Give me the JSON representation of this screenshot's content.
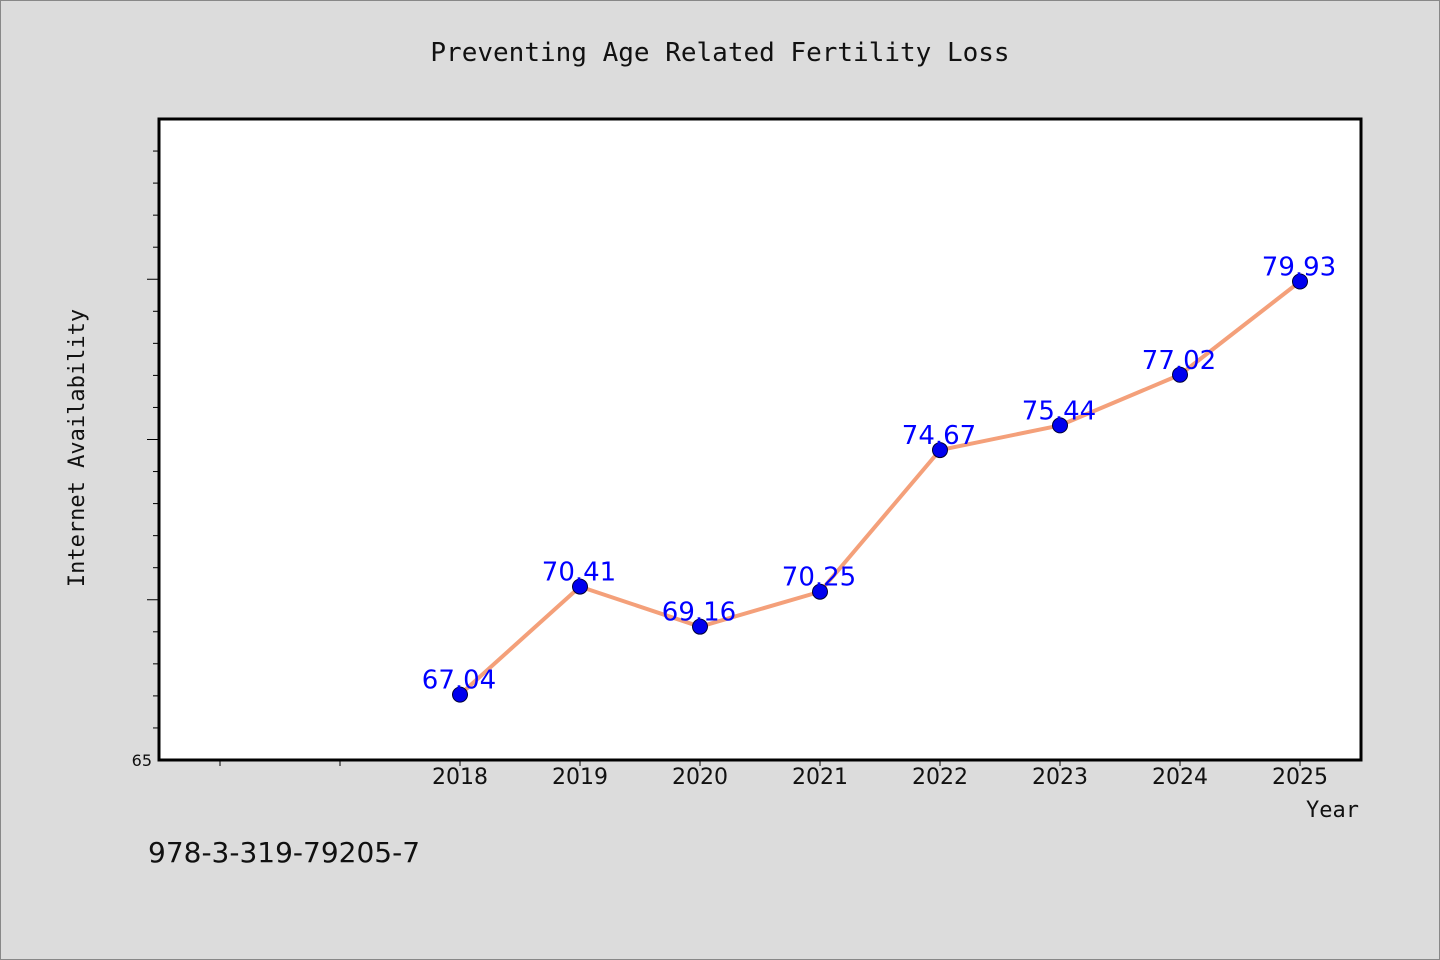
{
  "chart_data": {
    "type": "line",
    "title": "Preventing Age Related Fertility Loss",
    "xlabel": "Year",
    "ylabel": "Internet Availability",
    "categories": [
      "2018",
      "2019",
      "2020",
      "2021",
      "2022",
      "2023",
      "2024",
      "2025"
    ],
    "series": [
      {
        "values": [
          67.04,
          70.41,
          69.16,
          70.25,
          74.67,
          75.44,
          77.02,
          79.93
        ],
        "line_color": "#f4a07a",
        "marker_color": "#0000ee"
      }
    ],
    "ylim": [
      65,
      85
    ],
    "y_tick_labels": [
      "65"
    ],
    "grid": false,
    "data_label_color": "#0000ff"
  },
  "footer": {
    "text": "978-3-319-79205-7"
  }
}
